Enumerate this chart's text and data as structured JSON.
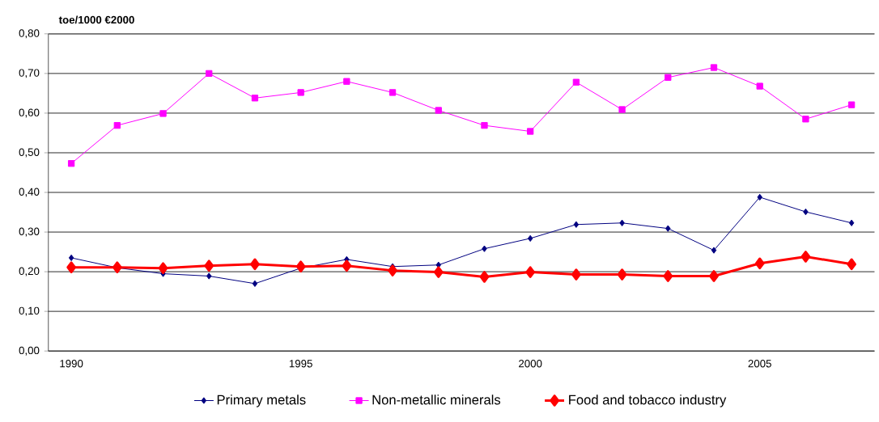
{
  "chart_data": {
    "type": "line",
    "ylabel": "toe/1000 €2000",
    "categories": [
      "1990",
      null,
      null,
      null,
      null,
      "1995",
      null,
      null,
      null,
      null,
      "2000",
      null,
      null,
      null,
      null,
      "2005",
      null,
      null
    ],
    "ylim": [
      0,
      0.8
    ],
    "yticks": [
      {
        "value": 0,
        "label": "0,00"
      },
      {
        "value": 0.1,
        "label": "0,10"
      },
      {
        "value": 0.2,
        "label": "0,20"
      },
      {
        "value": 0.3,
        "label": "0,30"
      },
      {
        "value": 0.4,
        "label": "0,40"
      },
      {
        "value": 0.5,
        "label": "0,50"
      },
      {
        "value": 0.6,
        "label": "0,60"
      },
      {
        "value": 0.7,
        "label": "0,70"
      },
      {
        "value": 0.8,
        "label": "0,80"
      }
    ],
    "grid": "y",
    "legend": "bottom",
    "series": [
      {
        "name": "Primary metals",
        "color": "#000080",
        "marker": "diamond",
        "values": [
          0.235,
          0.21,
          0.195,
          0.189,
          0.17,
          0.209,
          0.231,
          0.213,
          0.217,
          0.258,
          0.284,
          0.319,
          0.323,
          0.309,
          0.254,
          0.388,
          0.351,
          0.323
        ]
      },
      {
        "name": "Non-metallic minerals",
        "color": "#ff00ff",
        "marker": "square",
        "values": [
          0.473,
          0.569,
          0.599,
          0.7,
          0.638,
          0.652,
          0.68,
          0.652,
          0.607,
          0.569,
          0.554,
          0.678,
          0.609,
          0.69,
          0.715,
          0.668,
          0.585,
          0.621
        ]
      },
      {
        "name": "Food and tobacco industry",
        "color": "#ff0000",
        "marker": "diamond",
        "values": [
          0.211,
          0.211,
          0.209,
          0.215,
          0.219,
          0.213,
          0.215,
          0.203,
          0.199,
          0.187,
          0.199,
          0.193,
          0.193,
          0.189,
          0.189,
          0.221,
          0.238,
          0.219
        ]
      }
    ]
  }
}
